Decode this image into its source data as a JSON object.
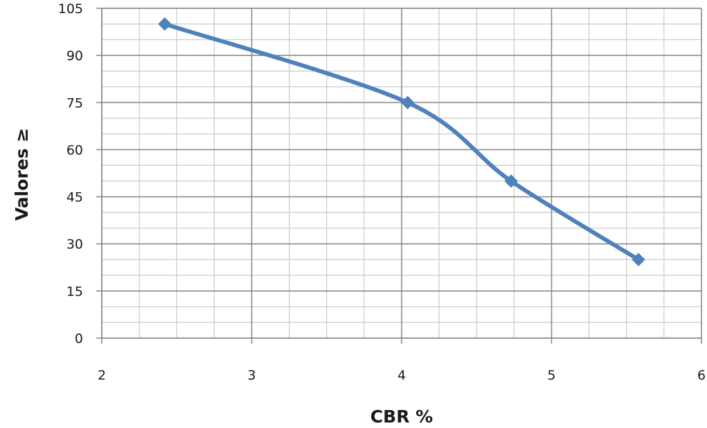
{
  "chart_data": {
    "type": "line",
    "title": "",
    "xlabel": "CBR %",
    "ylabel": "Valores ≥",
    "xlim": [
      2,
      6
    ],
    "ylim": [
      0,
      105
    ],
    "x_ticks": [
      2,
      3,
      4,
      5,
      6
    ],
    "y_ticks": [
      0,
      15,
      30,
      45,
      60,
      75,
      90,
      105
    ],
    "grid": true,
    "legend": "none",
    "marker": "diamond",
    "smooth": true,
    "series": [
      {
        "name": "",
        "color": "#4f81bd",
        "x": [
          2.42,
          4.04,
          4.73,
          5.58
        ],
        "y": [
          100,
          75,
          50,
          25
        ]
      }
    ]
  }
}
